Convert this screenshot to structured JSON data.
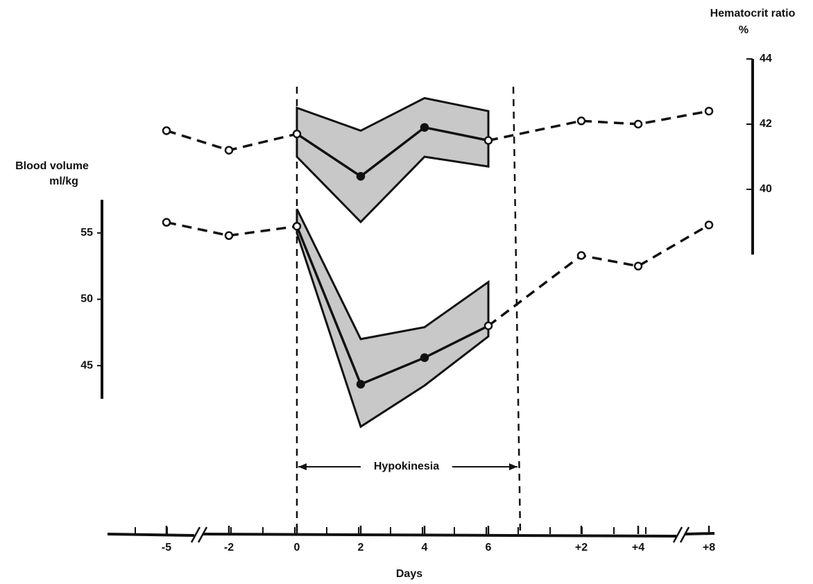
{
  "chart_data": {
    "type": "line",
    "xlabel": "Days",
    "ylabel": [
      "Blood volume",
      "ml/kg"
    ],
    "y2label": [
      "Hematocrit ratio",
      "%"
    ],
    "annotation": "Hypokinesia",
    "categories": [
      "-5",
      "-2",
      "0",
      "2",
      "4",
      "6",
      "+2",
      "+4",
      "+8"
    ],
    "ylim": [
      42.5,
      57.5
    ],
    "yticks": [
      45,
      50,
      55
    ],
    "y2lim": [
      38,
      44
    ],
    "y2ticks": [
      40,
      42,
      44
    ],
    "series": [
      {
        "axis": "y2",
        "color": "#111111",
        "values": [
          41.8,
          41.2,
          41.7,
          40.4,
          41.9,
          41.5,
          42.1,
          42.0,
          42.4
        ],
        "band_high": [
          null,
          null,
          42.5,
          41.8,
          42.8,
          42.4,
          null,
          null,
          null
        ],
        "band_low": [
          null,
          null,
          41.0,
          39.0,
          41.0,
          40.7,
          null,
          null,
          null
        ]
      },
      {
        "axis": "y",
        "color": "#111111",
        "values": [
          55.8,
          54.8,
          55.5,
          43.6,
          45.6,
          48.0,
          53.3,
          52.5,
          55.6
        ],
        "band_high": [
          null,
          null,
          56.8,
          47.0,
          47.9,
          51.3,
          null,
          null,
          null
        ],
        "band_low": [
          null,
          null,
          55.0,
          40.4,
          43.5,
          47.2,
          null,
          null,
          null
        ]
      }
    ]
  }
}
